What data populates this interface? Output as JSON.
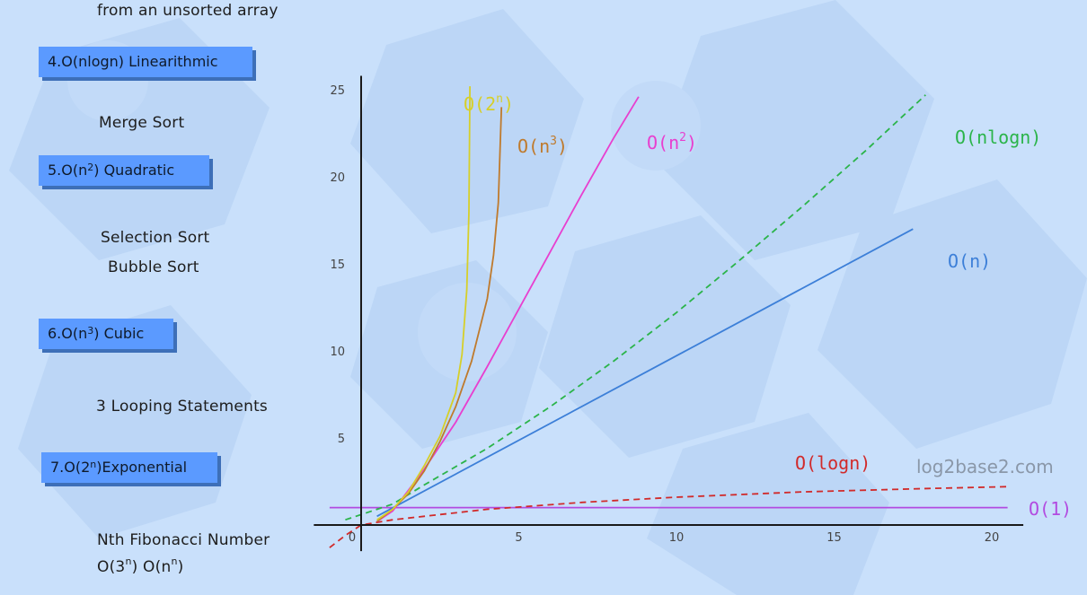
{
  "sidebar": {
    "top_caption": "from an unsorted array",
    "sections": [
      {
        "badge_pre": "4.O(nlogn) Linearithmic",
        "badge_sup": "",
        "badge_post": "",
        "examples": [
          "Merge Sort"
        ]
      },
      {
        "badge_pre": "5.O(n",
        "badge_sup": "2",
        "badge_post": ") Quadratic",
        "examples": [
          "Selection Sort",
          "Bubble Sort"
        ]
      },
      {
        "badge_pre": "6.O(n",
        "badge_sup": "3",
        "badge_post": ") Cubic",
        "examples": [
          "3 Looping Statements"
        ]
      },
      {
        "badge_pre": "7.O(2",
        "badge_sup": "n",
        "badge_post": ")Exponential",
        "examples": [
          "Nth Fibonacci Number"
        ]
      }
    ],
    "footer_parts": [
      "O(3",
      "n",
      ") O(n",
      "n",
      ")"
    ]
  },
  "watermark": "log2base2.com",
  "colors": {
    "background": "#c9e0fb",
    "badge": "#5b9aff",
    "axis": "#1a1a1a"
  },
  "chart_data": {
    "type": "line",
    "xlim": [
      -1.5,
      21
    ],
    "ylim": [
      -1.5,
      25.8
    ],
    "x_ticks": [
      0,
      5,
      10,
      15,
      20
    ],
    "y_ticks": [
      5,
      10,
      15,
      20,
      25
    ],
    "x_tick_labels": [
      "0",
      "5",
      "10",
      "15",
      "20"
    ],
    "y_tick_labels": [
      "5",
      "10",
      "15",
      "20",
      "25"
    ],
    "grid": false,
    "series": [
      {
        "name": "O(1)",
        "label": {
          "pre": "O(1)",
          "sup": ""
        },
        "color": "#b24be0",
        "dashed": false,
        "points": [
          [
            -1,
            1
          ],
          [
            20.5,
            1
          ]
        ]
      },
      {
        "name": "O(logn)",
        "label": {
          "pre": "O(logn)",
          "sup": ""
        },
        "color": "#d12a2a",
        "dashed": true,
        "points": [
          [
            -1,
            -1.3
          ],
          [
            -0.5,
            -0.6
          ],
          [
            0,
            0
          ],
          [
            1,
            0.3
          ],
          [
            2,
            0.5
          ],
          [
            4,
            0.9
          ],
          [
            7,
            1.3
          ],
          [
            10,
            1.6
          ],
          [
            14,
            1.9
          ],
          [
            18,
            2.1
          ],
          [
            20.5,
            2.2
          ]
        ]
      },
      {
        "name": "O(n)",
        "label": {
          "pre": "O(n)",
          "sup": ""
        },
        "color": "#3c7fd8",
        "dashed": false,
        "points": [
          [
            0.5,
            0.5
          ],
          [
            17.5,
            17
          ]
        ]
      },
      {
        "name": "O(nlogn)",
        "label": {
          "pre": "O(nlogn)",
          "sup": ""
        },
        "color": "#2bb44a",
        "dashed": true,
        "points": [
          [
            -0.5,
            0.3
          ],
          [
            0,
            0.6
          ],
          [
            1,
            1.2
          ],
          [
            2,
            2.3
          ],
          [
            4,
            4.4
          ],
          [
            6,
            6.8
          ],
          [
            8,
            9.4
          ],
          [
            10,
            12.2
          ],
          [
            12,
            15.2
          ],
          [
            14,
            18.3
          ],
          [
            16,
            21.5
          ],
          [
            17.9,
            24.7
          ]
        ]
      },
      {
        "name": "O(n^2)",
        "label": {
          "pre": "O(n",
          "sup": "2"
        },
        "color": "#e83fcf",
        "dashed": false,
        "points": [
          [
            0.5,
            0.2
          ],
          [
            1,
            0.8
          ],
          [
            2,
            3.2
          ],
          [
            3,
            5.9
          ],
          [
            4,
            9.1
          ],
          [
            5,
            12.4
          ],
          [
            6,
            15.7
          ],
          [
            7,
            19
          ],
          [
            8,
            22.2
          ],
          [
            8.8,
            24.6
          ]
        ]
      },
      {
        "name": "O(n^3)",
        "label": {
          "pre": "O(n",
          "sup": "3"
        },
        "color": "#bf7a2c",
        "dashed": false,
        "points": [
          [
            0.5,
            0.2
          ],
          [
            1,
            0.9
          ],
          [
            1.5,
            1.8
          ],
          [
            2,
            3.1
          ],
          [
            2.5,
            4.8
          ],
          [
            3,
            6.8
          ],
          [
            3.5,
            9.4
          ],
          [
            4,
            13
          ],
          [
            4.2,
            15.5
          ],
          [
            4.35,
            18.5
          ],
          [
            4.45,
            24
          ]
        ]
      },
      {
        "name": "O(2^n)",
        "label": {
          "pre": "O(2",
          "sup": "n"
        },
        "color": "#d6cf29",
        "dashed": false,
        "points": [
          [
            0.5,
            0.3
          ],
          [
            1,
            0.9
          ],
          [
            1.5,
            1.9
          ],
          [
            2,
            3.4
          ],
          [
            2.5,
            5.1
          ],
          [
            3,
            7.6
          ],
          [
            3.2,
            9.8
          ],
          [
            3.35,
            13.5
          ],
          [
            3.42,
            18
          ],
          [
            3.45,
            25.2
          ]
        ]
      }
    ]
  }
}
